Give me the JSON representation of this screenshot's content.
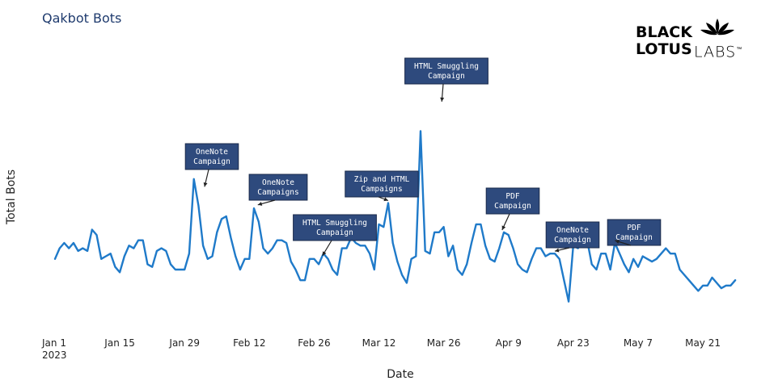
{
  "chart_data": {
    "type": "line",
    "title": "Qakbot Bots",
    "xlabel": "Date",
    "ylabel": "Total Bots",
    "x_tick_labels": [
      {
        "date": "2023-01-01",
        "label": "Jan 1",
        "sublabel": "2023"
      },
      {
        "date": "2023-01-15",
        "label": "Jan 15"
      },
      {
        "date": "2023-01-29",
        "label": "Jan 29"
      },
      {
        "date": "2023-02-12",
        "label": "Feb 12"
      },
      {
        "date": "2023-02-26",
        "label": "Feb 26"
      },
      {
        "date": "2023-03-12",
        "label": "Mar 12"
      },
      {
        "date": "2023-03-26",
        "label": "Mar 26"
      },
      {
        "date": "2023-04-09",
        "label": "Apr 9"
      },
      {
        "date": "2023-04-23",
        "label": "Apr 23"
      },
      {
        "date": "2023-05-07",
        "label": "May 7"
      },
      {
        "date": "2023-05-21",
        "label": "May 21"
      }
    ],
    "x_range": [
      "2023-01-01",
      "2023-06-01"
    ],
    "y_range": [
      0,
      100
    ],
    "y_ticks_shown": false,
    "grid": false,
    "line_color": "#1f7ac9",
    "series": [
      {
        "x": [
          "2023-01-01",
          "2023-01-02",
          "2023-01-03",
          "2023-01-04",
          "2023-01-05",
          "2023-01-06",
          "2023-01-07",
          "2023-01-08",
          "2023-01-09",
          "2023-01-10",
          "2023-01-11",
          "2023-01-12",
          "2023-01-13",
          "2023-01-14",
          "2023-01-15",
          "2023-01-16",
          "2023-01-17",
          "2023-01-18",
          "2023-01-19",
          "2023-01-20",
          "2023-01-21",
          "2023-01-22",
          "2023-01-23",
          "2023-01-24",
          "2023-01-25",
          "2023-01-26",
          "2023-01-27",
          "2023-01-28",
          "2023-01-29",
          "2023-01-30",
          "2023-01-31",
          "2023-02-01",
          "2023-02-02",
          "2023-02-03",
          "2023-02-04",
          "2023-02-05",
          "2023-02-06",
          "2023-02-07",
          "2023-02-08",
          "2023-02-09",
          "2023-02-10",
          "2023-02-11",
          "2023-02-12",
          "2023-02-13",
          "2023-02-14",
          "2023-02-15",
          "2023-02-16",
          "2023-02-17",
          "2023-02-18",
          "2023-02-19",
          "2023-02-20",
          "2023-02-21",
          "2023-02-22",
          "2023-02-23",
          "2023-02-24",
          "2023-02-25",
          "2023-02-26",
          "2023-02-27",
          "2023-02-28",
          "2023-03-01",
          "2023-03-02",
          "2023-03-03",
          "2023-03-04",
          "2023-03-05",
          "2023-03-06",
          "2023-03-07",
          "2023-03-08",
          "2023-03-09",
          "2023-03-10",
          "2023-03-11",
          "2023-03-12",
          "2023-03-13",
          "2023-03-14",
          "2023-03-15",
          "2023-03-16",
          "2023-03-17",
          "2023-03-18",
          "2023-03-19",
          "2023-03-20",
          "2023-03-21",
          "2023-03-22",
          "2023-03-23",
          "2023-03-24",
          "2023-03-25",
          "2023-03-26",
          "2023-03-27",
          "2023-03-28",
          "2023-03-29",
          "2023-03-30",
          "2023-03-31",
          "2023-04-01",
          "2023-04-02",
          "2023-04-03",
          "2023-04-04",
          "2023-04-05",
          "2023-04-06",
          "2023-04-07",
          "2023-04-08",
          "2023-04-09",
          "2023-04-10",
          "2023-04-11",
          "2023-04-12",
          "2023-04-13",
          "2023-04-14",
          "2023-04-15",
          "2023-04-16",
          "2023-04-17",
          "2023-04-18",
          "2023-04-19",
          "2023-04-20",
          "2023-04-21",
          "2023-04-22",
          "2023-04-23",
          "2023-04-24",
          "2023-04-25",
          "2023-04-26",
          "2023-04-27",
          "2023-04-28",
          "2023-04-29",
          "2023-04-30",
          "2023-05-01",
          "2023-05-02",
          "2023-05-03",
          "2023-05-04",
          "2023-05-05",
          "2023-05-06",
          "2023-05-07",
          "2023-05-08",
          "2023-05-09",
          "2023-05-10",
          "2023-05-11",
          "2023-05-13",
          "2023-05-14",
          "2023-05-15",
          "2023-05-16",
          "2023-05-17",
          "2023-05-18",
          "2023-05-19",
          "2023-05-20",
          "2023-05-21",
          "2023-05-22",
          "2023-05-23",
          "2023-05-24",
          "2023-05-25",
          "2023-05-26",
          "2023-05-27",
          "2023-05-28"
        ],
        "values": [
          24,
          28,
          30,
          28,
          30,
          27,
          28,
          27,
          35,
          33,
          24,
          25,
          26,
          21,
          19,
          25,
          29,
          28,
          31,
          31,
          22,
          21,
          27,
          28,
          27,
          22,
          20,
          20,
          20,
          26,
          54,
          44,
          29,
          24,
          25,
          34,
          39,
          40,
          32,
          25,
          20,
          24,
          24,
          43,
          38,
          28,
          26,
          28,
          31,
          31,
          30,
          23,
          20,
          16,
          16,
          24,
          24,
          22,
          26,
          24,
          20,
          18,
          28,
          28,
          32,
          30,
          29,
          29,
          26,
          20,
          37,
          36,
          45,
          30,
          23,
          18,
          15,
          24,
          25,
          72,
          27,
          26,
          34,
          34,
          36,
          25,
          29,
          20,
          18,
          22,
          30,
          37,
          37,
          29,
          24,
          23,
          28,
          34,
          33,
          28,
          22,
          20,
          19,
          24,
          28,
          28,
          25,
          26,
          26,
          24,
          16,
          8,
          29,
          28,
          31,
          31,
          22,
          20,
          26,
          26,
          20,
          30,
          26,
          22,
          19,
          24,
          21,
          25,
          24,
          23,
          24,
          28,
          26,
          26,
          20,
          18,
          16,
          14,
          12,
          14,
          14,
          17,
          15,
          13,
          14,
          14,
          16
        ]
      }
    ],
    "annotations": [
      {
        "lines": [
          "OneNote",
          "Campaign"
        ],
        "date": "2023-01-30"
      },
      {
        "lines": [
          "OneNote",
          "Campaigns"
        ],
        "date": "2023-02-13"
      },
      {
        "lines": [
          "HTML Smuggling",
          "Campaign"
        ],
        "date": "2023-02-27"
      },
      {
        "lines": [
          "Zip and HTML",
          "Campaigns"
        ],
        "date": "2023-03-14"
      },
      {
        "lines": [
          "HTML Smuggling",
          "Campaign"
        ],
        "date": "2023-03-23"
      },
      {
        "lines": [
          "PDF",
          "Campaign"
        ],
        "date": "2023-04-05"
      },
      {
        "lines": [
          "OneNote",
          "Campaign"
        ],
        "date": "2023-04-19"
      },
      {
        "lines": [
          "PDF",
          "Campaign"
        ],
        "date": "2023-05-02"
      }
    ]
  },
  "logo": {
    "line1": "BLACK",
    "line2": "LOTUS",
    "line3": "LABS",
    "trademark": "™"
  },
  "colors": {
    "line": "#1f7ac9",
    "annotation_fill": "#2e4a7d",
    "title": "#1f3b6e"
  }
}
